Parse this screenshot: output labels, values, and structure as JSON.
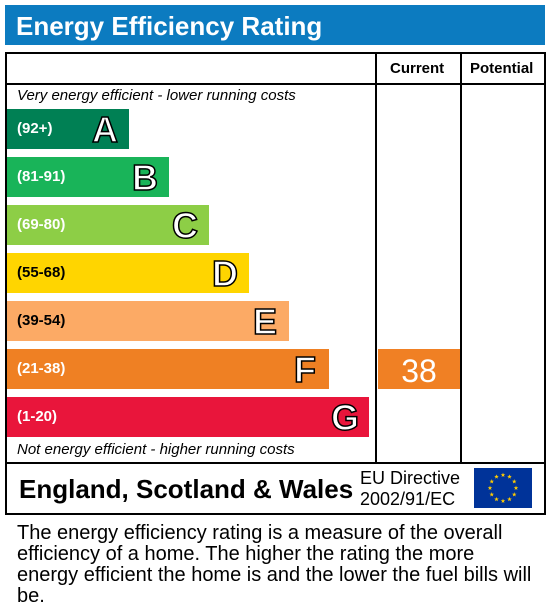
{
  "title": "Energy Efficiency Rating",
  "columns": {
    "current": "Current",
    "potential": "Potential"
  },
  "notes": {
    "top": "Very energy efficient - lower running costs",
    "bottom": "Not energy efficient - higher running costs"
  },
  "footer": {
    "country": "England, Scotland & Wales",
    "directive_line1": "EU Directive",
    "directive_line2": "2002/91/EC"
  },
  "description": "The energy efficiency rating is a measure of the overall efficiency of a home. The higher the rating the more energy efficient the home is and the lower the fuel bills will be.",
  "chart_data": {
    "type": "bar",
    "categories": [
      "A",
      "B",
      "C",
      "D",
      "E",
      "F",
      "G"
    ],
    "ranges": [
      "(92+)",
      "(81-91)",
      "(69-80)",
      "(55-68)",
      "(39-54)",
      "(21-38)",
      "(1-20)"
    ],
    "colors": [
      "#008054",
      "#19b459",
      "#8dce46",
      "#ffd500",
      "#fcaa65",
      "#ef8023",
      "#e9153b"
    ],
    "current": {
      "value": 38,
      "band": "F",
      "color": "#f08024"
    },
    "potential": null
  }
}
